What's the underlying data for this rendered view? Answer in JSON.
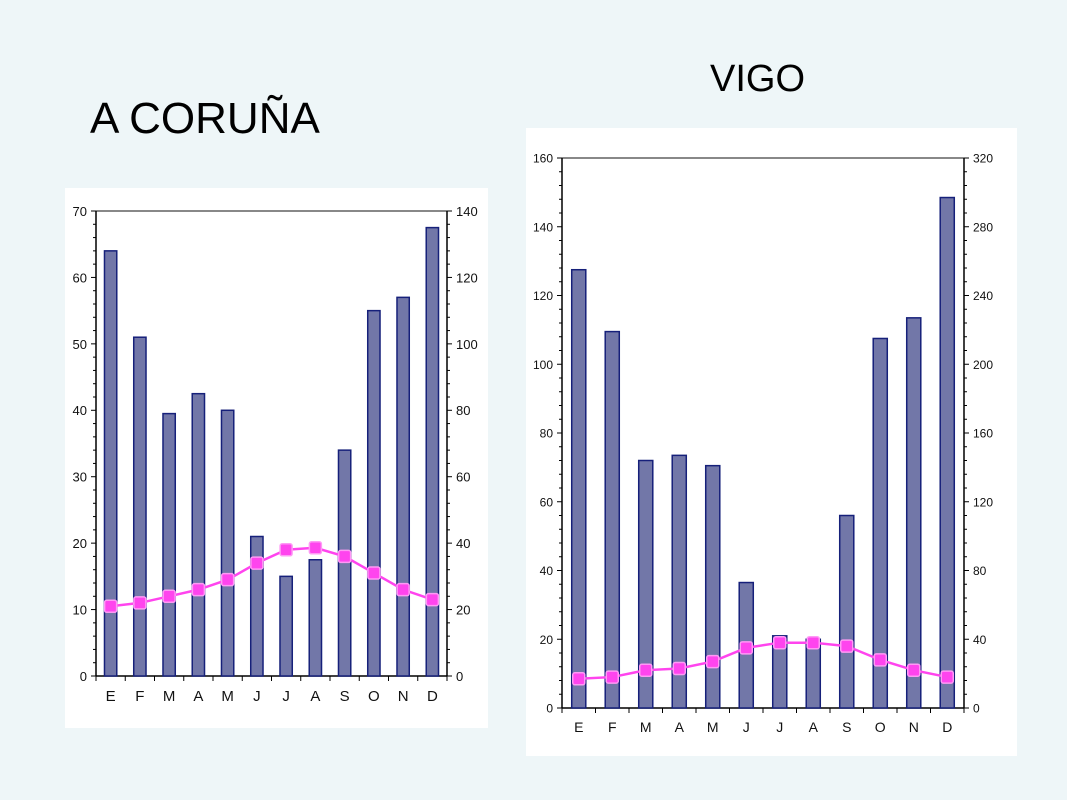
{
  "titles": {
    "coruna": "A CORUÑA",
    "vigo": "VIGO"
  },
  "colors": {
    "bar_fill": "#7277a8",
    "bar_stroke": "#16207a",
    "line": "#ff44ee",
    "marker": "#ff44ee",
    "axis": "#000000",
    "top_line": "#888888"
  },
  "chart_data": [
    {
      "type": "bar",
      "title": "A CORUÑA",
      "categories": [
        "E",
        "F",
        "M",
        "A",
        "M",
        "J",
        "J",
        "A",
        "S",
        "O",
        "N",
        "D"
      ],
      "ylim": [
        0,
        70
      ],
      "y2lim": [
        0,
        140
      ],
      "yticks": [
        0,
        10,
        20,
        30,
        40,
        50,
        60,
        70
      ],
      "y2ticks": [
        0,
        20,
        40,
        60,
        80,
        100,
        120,
        140
      ],
      "series": [
        {
          "type": "bar",
          "axis": "y2",
          "values": [
            128,
            102,
            79,
            85,
            80,
            42,
            30,
            35,
            68,
            110,
            114,
            135
          ]
        },
        {
          "type": "line",
          "axis": "y",
          "values": [
            10.5,
            11,
            12,
            13,
            14.5,
            17,
            19,
            19.3,
            18,
            15.5,
            13,
            11.5
          ]
        }
      ],
      "grid": false
    },
    {
      "type": "bar",
      "title": "VIGO",
      "categories": [
        "E",
        "F",
        "M",
        "A",
        "M",
        "J",
        "J",
        "A",
        "S",
        "O",
        "N",
        "D"
      ],
      "ylim": [
        0,
        160
      ],
      "y2lim": [
        0,
        320
      ],
      "yticks": [
        0,
        20,
        40,
        60,
        80,
        100,
        120,
        140,
        160
      ],
      "y2ticks": [
        0,
        40,
        80,
        120,
        160,
        200,
        240,
        280,
        320
      ],
      "series": [
        {
          "type": "bar",
          "axis": "y2",
          "values": [
            255,
            219,
            144,
            147,
            141,
            73,
            42,
            40,
            112,
            215,
            227,
            297
          ]
        },
        {
          "type": "line",
          "axis": "y",
          "values": [
            8.5,
            9,
            11,
            11.5,
            13.5,
            17.5,
            19,
            19,
            18,
            14,
            11,
            9
          ]
        }
      ],
      "grid": false
    }
  ]
}
